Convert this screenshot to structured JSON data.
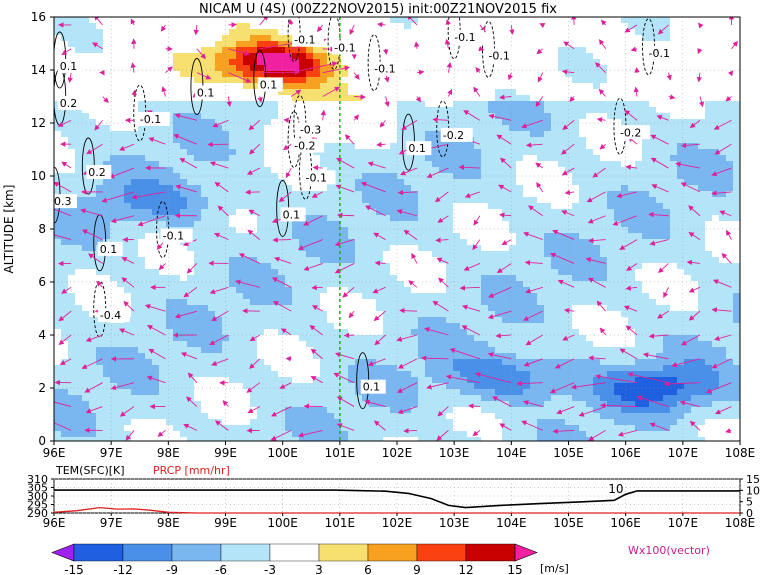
{
  "title": "NICAM U (4S) (00Z22NOV2015) init:00Z21NOV2015 fix",
  "chart_data": [
    {
      "type": "heatmap",
      "title": "NICAM U (4S) (00Z22NOV2015) init:00Z21NOV2015 fix",
      "ylabel": "ALTITUDE [km]",
      "xlabel": "",
      "x_ticks": [
        "96E",
        "97E",
        "98E",
        "99E",
        "100E",
        "101E",
        "102E",
        "103E",
        "104E",
        "105E",
        "106E",
        "107E",
        "108E"
      ],
      "y_ticks": [
        "0",
        "2",
        "4",
        "6",
        "8",
        "10",
        "12",
        "14",
        "16"
      ],
      "xlim": [
        96,
        108
      ],
      "ylim": [
        0,
        16
      ],
      "marker_line_lon": 101,
      "colorbar": {
        "levels": [
          "-15",
          "-12",
          "-9",
          "-6",
          "-3",
          "3",
          "6",
          "9",
          "12",
          "15"
        ],
        "colors": [
          "#a020f0",
          "#1e60e0",
          "#4a90e8",
          "#7ab6f0",
          "#b4e4f8",
          "#ffffff",
          "#f8e070",
          "#f8a020",
          "#f84010",
          "#c80000",
          "#f020a0"
        ],
        "unit": "[m/s]"
      },
      "vector_label": "Wx100(vector)",
      "contour_labels": [
        {
          "lon": 96.1,
          "alt": 14.0,
          "text": "0.1"
        },
        {
          "lon": 96.1,
          "alt": 12.6,
          "text": "0.2"
        },
        {
          "lon": 96.6,
          "alt": 10.0,
          "text": "0.2"
        },
        {
          "lon": 96.0,
          "alt": 8.9,
          "text": "0.3"
        },
        {
          "lon": 96.8,
          "alt": 7.1,
          "text": "0.1"
        },
        {
          "lon": 97.9,
          "alt": 7.6,
          "text": "-0.1"
        },
        {
          "lon": 96.8,
          "alt": 4.6,
          "text": "-0.4"
        },
        {
          "lon": 97.5,
          "alt": 12.0,
          "text": "-0.1"
        },
        {
          "lon": 98.5,
          "alt": 13.0,
          "text": "0.1"
        },
        {
          "lon": 99.6,
          "alt": 13.3,
          "text": "0.1"
        },
        {
          "lon": 100.2,
          "alt": 15.0,
          "text": "-0.1"
        },
        {
          "lon": 100.3,
          "alt": 11.6,
          "text": "-0.3"
        },
        {
          "lon": 100.2,
          "alt": 11.0,
          "text": "-0.2"
        },
        {
          "lon": 100.4,
          "alt": 9.8,
          "text": "-0.1"
        },
        {
          "lon": 100.0,
          "alt": 8.4,
          "text": "0.1"
        },
        {
          "lon": 100.9,
          "alt": 14.7,
          "text": "-0.1"
        },
        {
          "lon": 101.6,
          "alt": 13.9,
          "text": "-0.1"
        },
        {
          "lon": 102.2,
          "alt": 10.9,
          "text": "0.1"
        },
        {
          "lon": 102.8,
          "alt": 11.4,
          "text": "-0.2"
        },
        {
          "lon": 103.0,
          "alt": 15.1,
          "text": "-0.1"
        },
        {
          "lon": 103.6,
          "alt": 14.4,
          "text": "-0.1"
        },
        {
          "lon": 105.9,
          "alt": 11.5,
          "text": "-0.2"
        },
        {
          "lon": 106.4,
          "alt": 14.5,
          "text": "-0.1"
        },
        {
          "lon": 101.4,
          "alt": 1.9,
          "text": "0.1"
        }
      ],
      "jets": [
        {
          "lon": 100.0,
          "alt": 14.2,
          "value": 12
        },
        {
          "lon": 99.8,
          "alt": 14.3,
          "value": 9
        },
        {
          "lon": 100.6,
          "alt": 12.5,
          "value": 6
        },
        {
          "lon": 104.0,
          "alt": 2.4,
          "value": -12
        },
        {
          "lon": 106.6,
          "alt": 2.0,
          "value": -12
        },
        {
          "lon": 98.0,
          "alt": 9.0,
          "value": -9
        }
      ]
    },
    {
      "type": "line",
      "title": "",
      "x_ticks": [
        "96E",
        "97E",
        "98E",
        "99E",
        "100E",
        "101E",
        "102E",
        "103E",
        "104E",
        "105E",
        "106E",
        "107E",
        "108E"
      ],
      "left_axis_label": "TEM(SFC)[K]",
      "right_axis_label": "PRCP [mm/hr]",
      "left_ticks": [
        "290",
        "295",
        "300",
        "305",
        "310"
      ],
      "right_ticks": [
        "0",
        "5",
        "10",
        "15"
      ],
      "left_lim": [
        290,
        310
      ],
      "right_lim": [
        0,
        15
      ],
      "series": [
        {
          "name": "TEM(SFC)[K]",
          "axis": "left",
          "color": "#000000",
          "x": [
            96,
            97,
            98,
            99,
            100,
            100.9,
            101.3,
            101.8,
            102.2,
            102.6,
            102.9,
            103.2,
            103.8,
            104.5,
            105.2,
            105.8,
            106.0,
            106.2,
            107,
            108
          ],
          "y": [
            303.5,
            303.5,
            303.5,
            303.5,
            303.5,
            303.5,
            303.2,
            302.8,
            301.5,
            298.5,
            294.5,
            293.2,
            294.5,
            295.5,
            296.5,
            297.5,
            301,
            303,
            303,
            303
          ]
        },
        {
          "name": "PRCP [mm/hr]",
          "axis": "right",
          "color": "#e02020",
          "x": [
            96,
            96.4,
            96.8,
            97.1,
            97.4,
            97.7,
            98.0,
            98.5,
            99,
            100,
            101,
            102,
            103,
            104,
            105,
            106,
            107,
            108
          ],
          "y": [
            0.3,
            1.0,
            2.4,
            1.7,
            1.8,
            1.2,
            0.3,
            0,
            0,
            0,
            0,
            0,
            0,
            0,
            0,
            0,
            0,
            0
          ]
        }
      ],
      "annotations": [
        {
          "lon": 105.8,
          "text": "10"
        }
      ]
    }
  ]
}
